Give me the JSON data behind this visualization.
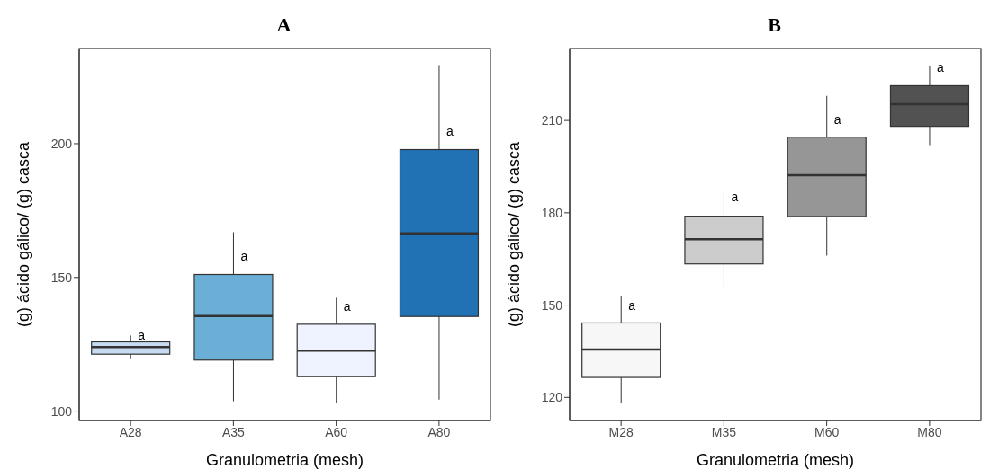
{
  "chart_data": [
    {
      "type": "box",
      "title": "A",
      "xlabel": "Granulometria (mesh)",
      "ylabel": "(g) ácido gálico/ (g) casca",
      "categories": [
        "A28",
        "A35",
        "A60",
        "A80"
      ],
      "colors": [
        "#c6dbef",
        "#6baed6",
        "#eff3ff",
        "#2171b5"
      ],
      "ylim": [
        96.5,
        235.6
      ],
      "yticks": [
        100,
        150,
        200
      ],
      "grid": false,
      "legend": false,
      "boxes": [
        {
          "low": 119.4,
          "q1": 121.3,
          "median": 124.0,
          "q3": 125.9,
          "high": 128.3
        },
        {
          "low": 103.7,
          "q1": 119.1,
          "median": 135.6,
          "q3": 151.1,
          "high": 166.9
        },
        {
          "low": 103.1,
          "q1": 112.9,
          "median": 122.6,
          "q3": 132.5,
          "high": 142.4
        },
        {
          "low": 104.3,
          "q1": 135.4,
          "median": 166.5,
          "q3": 197.8,
          "high": 229.4
        }
      ],
      "annotations": [
        {
          "text": "a",
          "x": "A28",
          "y": 128.3
        },
        {
          "text": "a",
          "x": "A35",
          "y": 157.9
        },
        {
          "text": "a",
          "x": "A60",
          "y": 139.3
        },
        {
          "text": "a",
          "x": "A80",
          "y": 204.6
        }
      ]
    },
    {
      "type": "box",
      "title": "B",
      "xlabel": "Granulometria (mesh)",
      "ylabel": "(g) ácido gálico/ (g) casca",
      "categories": [
        "M28",
        "M35",
        "M60",
        "M80"
      ],
      "colors": [
        "#f7f7f7",
        "#cccccc",
        "#969696",
        "#525252"
      ],
      "ylim": [
        112.5,
        233.4
      ],
      "yticks": [
        120,
        150,
        180,
        210
      ],
      "grid": false,
      "legend": false,
      "boxes": [
        {
          "low": 118.1,
          "q1": 126.5,
          "median": 135.6,
          "q3": 144.2,
          "high": 153.1
        },
        {
          "low": 156.1,
          "q1": 163.4,
          "median": 171.4,
          "q3": 178.9,
          "high": 187.0
        },
        {
          "low": 166.1,
          "q1": 178.8,
          "median": 192.2,
          "q3": 204.6,
          "high": 218.0
        },
        {
          "low": 202.0,
          "q1": 208.1,
          "median": 215.3,
          "q3": 221.3,
          "high": 227.8
        }
      ],
      "annotations": [
        {
          "text": "a",
          "x": "M28",
          "y": 149.9
        },
        {
          "text": "a",
          "x": "M35",
          "y": 185.2
        },
        {
          "text": "a",
          "x": "M60",
          "y": 210.4
        },
        {
          "text": "a",
          "x": "M80",
          "y": 227.3
        }
      ]
    }
  ]
}
